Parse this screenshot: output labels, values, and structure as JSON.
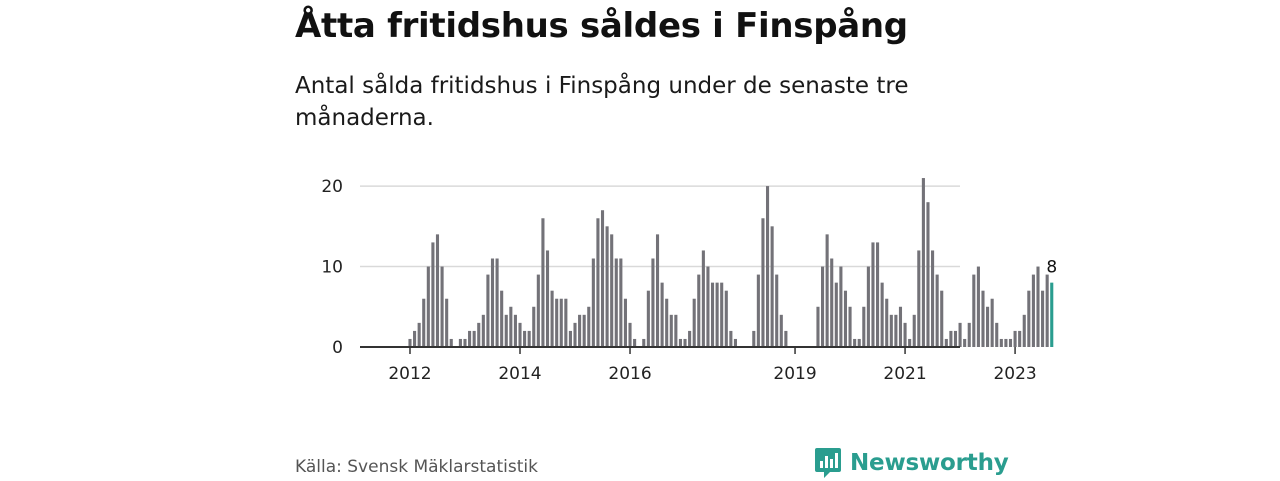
{
  "header": {
    "title": "Åtta fritidshus såldes i Finspång",
    "subtitle": "Antal sålda fritidshus i Finspång under de senaste tre månaderna."
  },
  "footer": {
    "source": "Källa: Svensk Mäklarstatistik",
    "logo_text": "Newsworthy"
  },
  "colors": {
    "bar": "#737278",
    "highlight": "#2a9d8f",
    "grid": "#d9d9d9",
    "axis": "#333333"
  },
  "chart_data": {
    "type": "bar",
    "title": "Åtta fritidshus såldes i Finspång",
    "subtitle": "Antal sålda fritidshus i Finspång under de senaste tre månaderna.",
    "xlabel": "",
    "ylabel": "",
    "ylim": [
      0,
      22
    ],
    "yticks": [
      0,
      10,
      20
    ],
    "x_tick_labels": [
      "2012",
      "2014",
      "2016",
      "2019",
      "2021",
      "2023"
    ],
    "x_ticks": [
      2012,
      2014,
      2016,
      2019,
      2021,
      2023
    ],
    "grid": true,
    "start": "2011-03",
    "highlight_last": true,
    "annotation": "8",
    "values": [
      0,
      0,
      0,
      0,
      0,
      0,
      0,
      0,
      0,
      0,
      1,
      2,
      3,
      6,
      10,
      13,
      14,
      10,
      6,
      1,
      0,
      1,
      1,
      2,
      2,
      3,
      4,
      9,
      11,
      11,
      7,
      4,
      5,
      4,
      3,
      2,
      2,
      5,
      9,
      16,
      12,
      7,
      6,
      6,
      6,
      2,
      3,
      4,
      4,
      5,
      11,
      16,
      17,
      15,
      14,
      11,
      11,
      6,
      3,
      1,
      0,
      1,
      7,
      11,
      14,
      8,
      6,
      4,
      4,
      1,
      1,
      2,
      6,
      9,
      12,
      10,
      8,
      8,
      8,
      7,
      2,
      1,
      0,
      0,
      0,
      2,
      9,
      16,
      20,
      15,
      9,
      4,
      2,
      0,
      0,
      0,
      0,
      0,
      0,
      5,
      10,
      14,
      11,
      8,
      10,
      7,
      5,
      1,
      1,
      5,
      10,
      13,
      13,
      8,
      6,
      4,
      4,
      5,
      3,
      1,
      4,
      12,
      21,
      18,
      12,
      9,
      7,
      1,
      2,
      2,
      3,
      1,
      3,
      9,
      10,
      7,
      5,
      6,
      3,
      1,
      1,
      1,
      2,
      2,
      4,
      7,
      9,
      10,
      7,
      9,
      8
    ]
  }
}
